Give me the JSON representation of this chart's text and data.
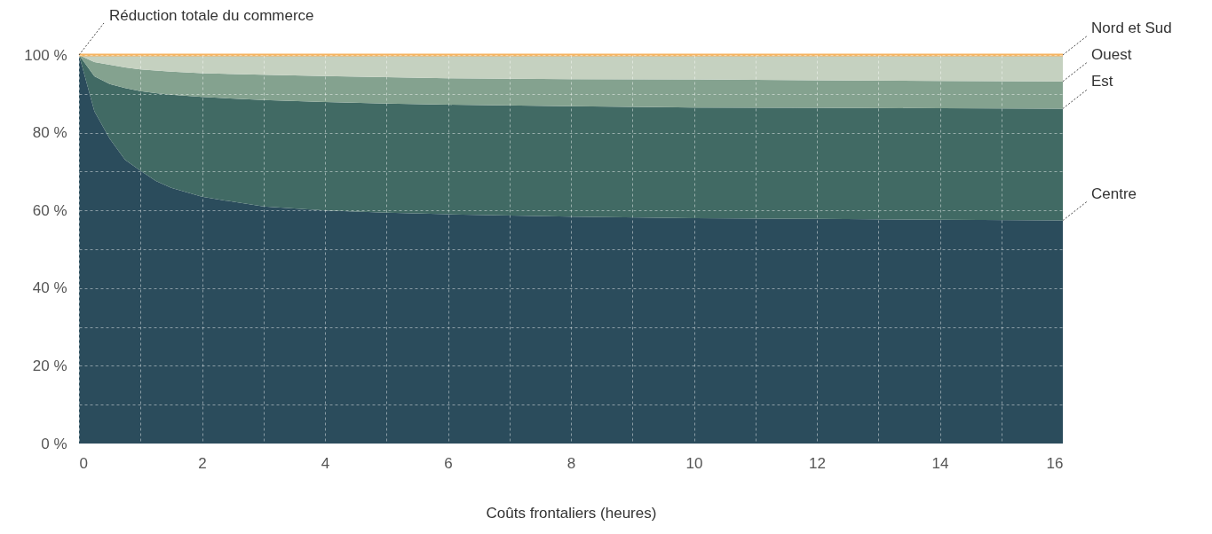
{
  "chart_data": {
    "type": "area",
    "stacked": true,
    "xlabel": "Coûts frontaliers (heures)",
    "x": [
      0,
      0.25,
      0.5,
      0.75,
      1,
      1.25,
      1.5,
      2,
      3,
      4,
      5,
      6,
      8,
      10,
      12,
      14,
      16
    ],
    "series": [
      {
        "name": "Centre",
        "color": "#2b4c5c",
        "values": [
          100,
          85.5,
          78.4,
          73,
          70.2,
          67.6,
          65.8,
          63.5,
          61,
          60,
          59.4,
          59,
          58.4,
          58,
          57.8,
          57.6,
          57.4
        ]
      },
      {
        "name": "Est",
        "color": "#416a64",
        "values": [
          0,
          9,
          14.1,
          18.5,
          20.5,
          22.6,
          24,
          25.7,
          27.4,
          27.9,
          28.1,
          28.2,
          28.4,
          28.5,
          28.6,
          28.7,
          28.8
        ]
      },
      {
        "name": "Ouest",
        "color": "#84a28f",
        "values": [
          0,
          3.7,
          5,
          5.3,
          5.6,
          5.8,
          5.9,
          6.1,
          6.5,
          6.7,
          6.8,
          6.8,
          7,
          7.2,
          7.1,
          7,
          7
        ]
      },
      {
        "name": "Nord et Sud",
        "color": "#c5d1c0",
        "values": [
          0,
          1.8,
          2.5,
          3.2,
          3.7,
          4,
          4.3,
          4.7,
          5.1,
          5.4,
          5.7,
          6,
          6.2,
          6.3,
          6.5,
          6.7,
          6.8
        ]
      },
      {
        "name": "Réduction totale du commerce",
        "type": "line",
        "color": "#f5b461",
        "values": [
          100,
          100,
          100,
          100,
          100,
          100,
          100,
          100,
          100,
          100,
          100,
          100,
          100,
          100,
          100,
          100,
          100
        ]
      }
    ],
    "xlim": [
      0,
      16
    ],
    "xticks": [
      0,
      {
        "value": 1,
        "label": null
      },
      2,
      {
        "value": 3,
        "label": null
      },
      4,
      {
        "value": 5,
        "label": null
      },
      6,
      {
        "value": 7,
        "label": null
      },
      8,
      {
        "value": 9,
        "label": null
      },
      10,
      {
        "value": 11,
        "label": null
      },
      12,
      {
        "value": 13,
        "label": null
      },
      14,
      {
        "value": 15,
        "label": null
      },
      16
    ],
    "ylim": [
      0,
      100
    ],
    "yticks": [
      {
        "value": 0,
        "label": "0 %"
      },
      {
        "value": 10,
        "label": null
      },
      {
        "value": 20,
        "label": "20 %"
      },
      {
        "value": 30,
        "label": null
      },
      {
        "value": 40,
        "label": "40 %"
      },
      {
        "value": 50,
        "label": null
      },
      {
        "value": 60,
        "label": "60 %"
      },
      {
        "value": 70,
        "label": null
      },
      {
        "value": 80,
        "label": "80 %"
      },
      {
        "value": 90,
        "label": null
      },
      {
        "value": 100,
        "label": "100 %"
      }
    ],
    "grid": true
  }
}
